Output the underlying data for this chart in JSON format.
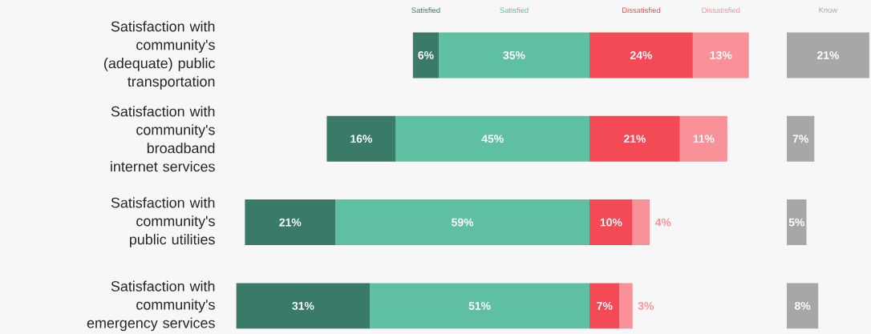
{
  "chart_data": [
    {
      "type": "bar",
      "orientation": "horizontal",
      "stacked": true,
      "tick_labels": "y",
      "xlim": [
        82,
        0
      ],
      "categories": [
        "Satisfaction with community's (adequate) public transportation",
        "Satisfaction with community's broadband internet services",
        "Satisfaction with community's public utilities",
        "Satisfaction with community's emergency services"
      ],
      "series": [
        {
          "name": "Satisfied",
          "color": "#5fbfa3",
          "values": [
            35,
            45,
            59,
            51
          ],
          "value_labels": [
            "35%",
            "45%",
            "59%",
            "51%"
          ]
        },
        {
          "name": "Satisfied",
          "color": "#3a7a68",
          "values": [
            6,
            16,
            21,
            31
          ],
          "value_labels": [
            "6%",
            "16%",
            "21%",
            "31%"
          ]
        }
      ]
    },
    {
      "type": "bar",
      "orientation": "horizontal",
      "stacked": true,
      "tick_labels": false,
      "xlim": [
        0,
        37
      ],
      "categories": [
        null,
        null,
        null,
        null
      ],
      "series": [
        {
          "name": "Dissatisfied",
          "color": "#f44a55",
          "values": [
            24,
            21,
            10,
            7
          ],
          "value_labels": [
            "24%",
            "21%",
            "10%",
            "7%"
          ]
        },
        {
          "name": "Dissatisfied",
          "color": "#f99198",
          "values": [
            13,
            11,
            4,
            3
          ],
          "value_labels": [
            "13%",
            "11%",
            "4%",
            "3%"
          ]
        }
      ]
    },
    {
      "type": "bar",
      "orientation": "horizontal",
      "tick_labels": false,
      "xlim": [
        0,
        21
      ],
      "categories": [
        null,
        null,
        null,
        null
      ],
      "series": [
        {
          "name": "Know",
          "color": "#a7a7aa",
          "values": [
            21,
            7,
            5,
            8
          ],
          "value_labels": [
            "21%",
            "7%",
            "5%",
            "8%"
          ]
        }
      ]
    }
  ]
}
